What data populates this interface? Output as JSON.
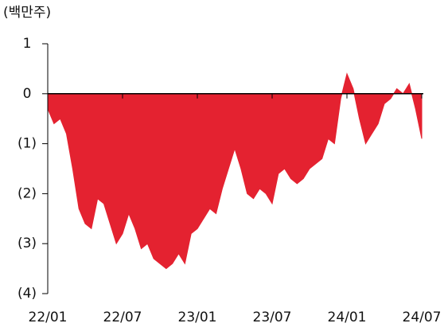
{
  "chart_data": {
    "type": "area",
    "unit_label": "(백만주)",
    "color": "#e42230",
    "x": [
      0,
      0.5,
      1,
      1.5,
      2,
      2.5,
      3,
      3.5,
      4,
      4.5,
      5,
      5.5,
      6,
      6.5,
      7,
      7.5,
      8,
      8.5,
      9,
      9.5,
      10,
      10.5,
      11,
      11.5,
      12,
      12.5,
      13,
      13.5,
      14,
      14.5,
      15,
      15.5,
      16,
      16.5,
      17,
      17.5,
      18,
      18.5,
      19,
      19.5,
      20,
      20.5,
      21,
      21.5,
      22,
      22.5,
      23,
      23.5,
      24,
      24.5,
      25,
      25.5,
      26,
      26.5,
      27,
      27.5,
      28,
      28.5,
      29,
      29.5,
      30
    ],
    "values": [
      -0.3,
      -0.6,
      -0.5,
      -0.8,
      -1.5,
      -2.3,
      -2.6,
      -2.7,
      -2.1,
      -2.2,
      -2.6,
      -3.0,
      -2.8,
      -2.4,
      -2.7,
      -3.1,
      -3.0,
      -3.3,
      -3.4,
      -3.5,
      -3.4,
      -3.2,
      -3.4,
      -2.8,
      -2.7,
      -2.5,
      -2.3,
      -2.4,
      -1.9,
      -1.5,
      -1.1,
      -1.5,
      -2.0,
      -2.1,
      -1.9,
      -2.0,
      -2.2,
      -1.6,
      -1.5,
      -1.7,
      -1.8,
      -1.7,
      -1.5,
      -1.4,
      -1.3,
      -0.9,
      -1.0,
      -0.1,
      0.4,
      0.1,
      -0.5,
      -1.0,
      -0.8,
      -0.6,
      -0.2,
      -0.1,
      0.1,
      0.0,
      0.2,
      -0.3,
      -0.9
    ],
    "xlim": [
      0,
      30
    ],
    "xticks": [
      {
        "value": 0,
        "label": "22/01"
      },
      {
        "value": 6,
        "label": "22/07"
      },
      {
        "value": 12,
        "label": "23/01"
      },
      {
        "value": 18,
        "label": "23/07"
      },
      {
        "value": 24,
        "label": "24/01"
      },
      {
        "value": 30,
        "label": "24/07"
      }
    ],
    "ylim": [
      -4,
      1
    ],
    "yticks": [
      1,
      0,
      {
        "value": -1,
        "label": "(1)"
      },
      {
        "value": -2,
        "label": "(2)"
      },
      {
        "value": -3,
        "label": "(3)"
      },
      {
        "value": -4,
        "label": "(4)"
      }
    ]
  }
}
